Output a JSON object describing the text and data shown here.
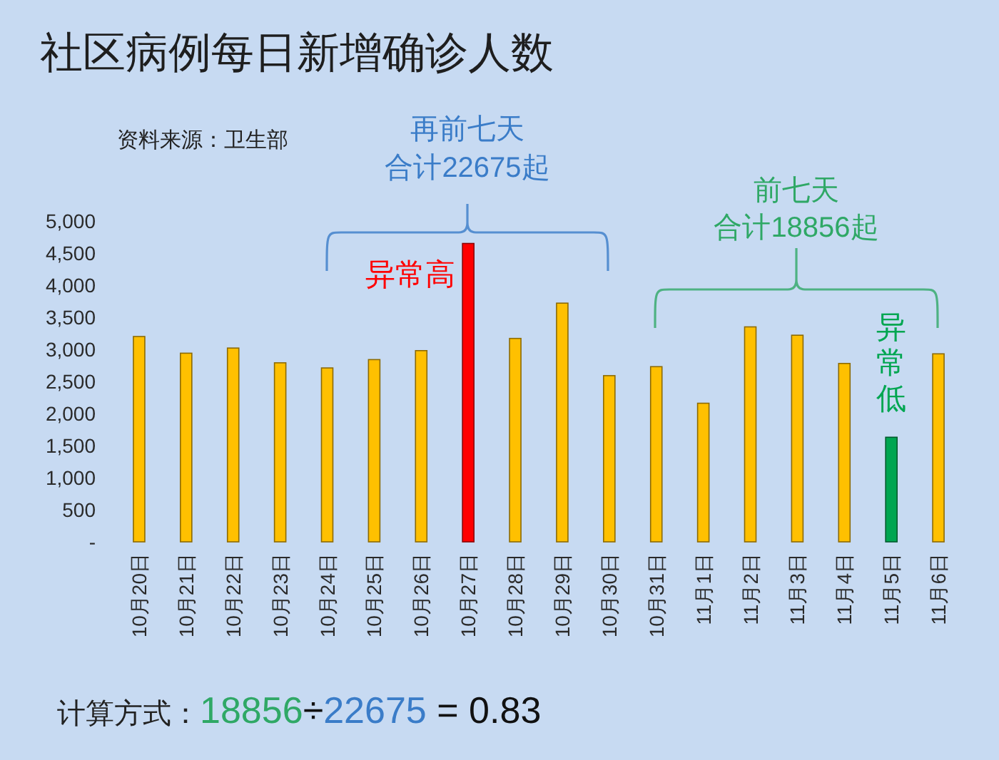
{
  "chart_data": {
    "type": "bar",
    "title": "社区病例每日新增确诊人数",
    "categories": [
      "10月20日",
      "10月21日",
      "10月22日",
      "10月23日",
      "10月24日",
      "10月25日",
      "10月26日",
      "10月27日",
      "10月28日",
      "10月29日",
      "10月30日",
      "10月31日",
      "11月1日",
      "11月2日",
      "11月3日",
      "11月4日",
      "11月5日",
      "11月6日"
    ],
    "values": [
      3200,
      2940,
      3020,
      2790,
      2710,
      2840,
      2980,
      4650,
      3170,
      3720,
      2590,
      2730,
      2160,
      3350,
      3220,
      2780,
      1630,
      2930
    ],
    "colors": [
      "#ffc000",
      "#ffc000",
      "#ffc000",
      "#ffc000",
      "#ffc000",
      "#ffc000",
      "#ffc000",
      "#ff0000",
      "#ffc000",
      "#ffc000",
      "#ffc000",
      "#ffc000",
      "#ffc000",
      "#ffc000",
      "#ffc000",
      "#ffc000",
      "#00a651",
      "#ffc000"
    ],
    "ylim": [
      0,
      5000
    ],
    "yticks": [
      {
        "value": 0,
        "label": "-"
      },
      500,
      {
        "value": 1000,
        "label": "1,000"
      },
      {
        "value": 1500,
        "label": "1,500"
      },
      {
        "value": 2000,
        "label": "2,000"
      },
      {
        "value": 2500,
        "label": "2,500"
      },
      {
        "value": 3000,
        "label": "3,000"
      },
      {
        "value": 3500,
        "label": "3,500"
      },
      {
        "value": 4000,
        "label": "4,000"
      },
      {
        "value": 4500,
        "label": "4,500"
      },
      {
        "value": 5000,
        "label": "5,000"
      }
    ],
    "annotations": [
      "资料来源：卫生部",
      "再前七天",
      "合计22675起",
      "前七天",
      "合计18856起",
      {
        "text": "异常高",
        "x": "10月27日",
        "y": 4650
      },
      {
        "text": "异常低",
        "x": "11月5日",
        "y": 1630
      },
      "计算方式：18856÷22675 = 0.83"
    ]
  }
}
